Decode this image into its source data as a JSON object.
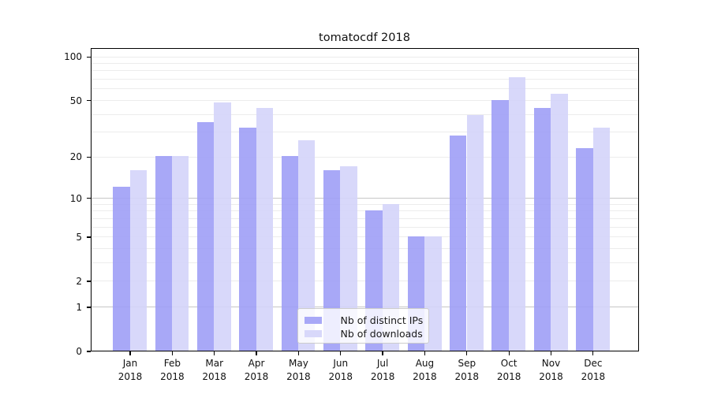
{
  "chart_data": {
    "type": "bar",
    "title": "tomatocdf 2018",
    "categories": [
      "Jan",
      "Feb",
      "Mar",
      "Apr",
      "May",
      "Jun",
      "Jul",
      "Aug",
      "Sep",
      "Oct",
      "Nov",
      "Dec"
    ],
    "x_year_label": "2018",
    "series": [
      {
        "name": "Nb of distinct IPs",
        "color": "#a8a8f7",
        "fill": "rgba(158,158,246,0.9)",
        "values": [
          12,
          20,
          35,
          32,
          20,
          16,
          8,
          5,
          28,
          50,
          44,
          23
        ]
      },
      {
        "name": "Nb of downloads",
        "color": "#d8d8fa",
        "fill": "rgba(212,212,250,0.9)",
        "values": [
          16,
          20,
          48,
          44,
          26,
          17,
          9,
          5,
          39,
          72,
          55,
          32
        ]
      }
    ],
    "y_axis": {
      "scale": "log1p",
      "range": [
        0,
        115
      ],
      "tick_labels": [
        "100",
        "50",
        "20",
        "10",
        "5",
        "2",
        "1",
        "0"
      ],
      "tick_values": [
        100,
        50,
        20,
        10,
        5,
        2,
        1,
        0
      ],
      "major_gridlines": [
        1,
        10
      ],
      "minor_gridlines": [
        2,
        3,
        4,
        5,
        6,
        7,
        8,
        9,
        20,
        30,
        40,
        50,
        60,
        70,
        80,
        90,
        100
      ]
    },
    "legend": {
      "position": "lower center",
      "entries": [
        "Nb of distinct IPs",
        "Nb of downloads"
      ]
    },
    "grid": true
  }
}
